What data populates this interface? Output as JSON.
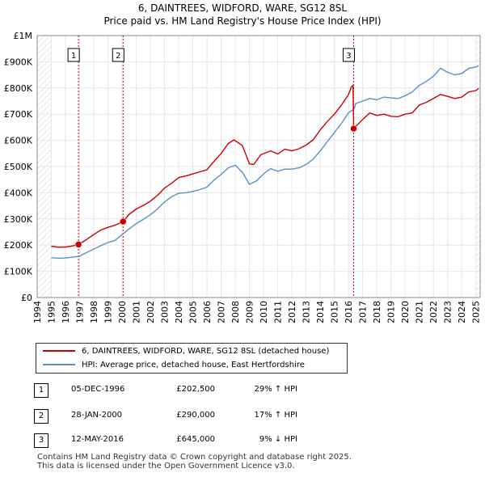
{
  "chart_data": {
    "type": "line",
    "title": "6, DAINTREES, WIDFORD, WARE, SG12 8SL",
    "subtitle": "Price paid vs. HM Land Registry's House Price Index (HPI)",
    "xlim": [
      1994,
      2025.3
    ],
    "ylim": [
      0,
      1000000
    ],
    "y_ticks": [
      0,
      100000,
      200000,
      300000,
      400000,
      500000,
      600000,
      700000,
      800000,
      900000,
      1000000
    ],
    "y_tick_labels": [
      "£0",
      "£100K",
      "£200K",
      "£300K",
      "£400K",
      "£500K",
      "£600K",
      "£700K",
      "£800K",
      "£900K",
      "£1M"
    ],
    "x_ticks": [
      1994,
      1995,
      1996,
      1997,
      1998,
      1999,
      2000,
      2001,
      2002,
      2003,
      2004,
      2005,
      2006,
      2007,
      2008,
      2009,
      2010,
      2011,
      2012,
      2013,
      2014,
      2015,
      2016,
      2017,
      2018,
      2019,
      2020,
      2021,
      2022,
      2023,
      2024,
      2025
    ],
    "x_tick_labels": [
      "1994",
      "1995",
      "1996",
      "1997",
      "1998",
      "1999",
      "2000",
      "2001",
      "2002",
      "2003",
      "2004",
      "2005",
      "2006",
      "2007",
      "2008",
      "2009",
      "2010",
      "2011",
      "2012",
      "2013",
      "2014",
      "2015",
      "2016",
      "2017",
      "2018",
      "2019",
      "2020",
      "2021",
      "2022",
      "2023",
      "2024",
      "2025"
    ],
    "grid": true,
    "series": [
      {
        "name": "6, DAINTREES, WIDFORD, WARE, SG12 8SL (detached house)",
        "color": "#cc0000",
        "x": [
          1995.0,
          1995.5,
          1996.0,
          1996.5,
          1996.92,
          1997.5,
          1998.0,
          1998.5,
          1999.0,
          1999.5,
          2000.07,
          2000.5,
          2001.0,
          2001.5,
          2002.0,
          2002.5,
          2003.0,
          2003.5,
          2004.0,
          2004.5,
          2005.0,
          2005.5,
          2006.0,
          2006.5,
          2007.0,
          2007.5,
          2007.9,
          2008.5,
          2009.0,
          2009.3,
          2009.8,
          2010.5,
          2011.0,
          2011.5,
          2012.0,
          2012.5,
          2013.0,
          2013.5,
          2014.0,
          2014.5,
          2015.0,
          2015.5,
          2016.0,
          2016.2,
          2016.32,
          2016.36,
          2016.5,
          2017.0,
          2017.5,
          2018.0,
          2018.5,
          2019.0,
          2019.5,
          2020.0,
          2020.5,
          2021.0,
          2021.5,
          2022.0,
          2022.5,
          2023.0,
          2023.5,
          2024.0,
          2024.5,
          2025.0,
          2025.2
        ],
        "y": [
          196000,
          192000,
          193000,
          197000,
          202500,
          222000,
          240000,
          258000,
          268000,
          276000,
          290000,
          318000,
          338000,
          352000,
          368000,
          390000,
          418000,
          436000,
          458000,
          464000,
          472000,
          480000,
          488000,
          520000,
          550000,
          588000,
          602000,
          580000,
          510000,
          508000,
          545000,
          560000,
          548000,
          566000,
          560000,
          568000,
          582000,
          602000,
          640000,
          672000,
          700000,
          735000,
          775000,
          805000,
          810000,
          645000,
          652000,
          680000,
          705000,
          695000,
          700000,
          692000,
          690000,
          700000,
          705000,
          735000,
          745000,
          760000,
          775000,
          768000,
          760000,
          765000,
          785000,
          790000,
          798000
        ]
      },
      {
        "name": "HPI: Average price, detached house, East Hertfordshire",
        "color": "#5b8fc9",
        "x": [
          1995.0,
          1995.5,
          1996.0,
          1996.5,
          1997.0,
          1997.5,
          1998.0,
          1998.5,
          1999.0,
          1999.5,
          2000.0,
          2000.5,
          2001.0,
          2001.5,
          2002.0,
          2002.5,
          2003.0,
          2003.5,
          2004.0,
          2004.5,
          2005.0,
          2005.5,
          2006.0,
          2006.5,
          2007.0,
          2007.5,
          2008.0,
          2008.5,
          2009.0,
          2009.5,
          2010.0,
          2010.5,
          2011.0,
          2011.5,
          2012.0,
          2012.5,
          2013.0,
          2013.5,
          2014.0,
          2014.5,
          2015.0,
          2015.5,
          2016.0,
          2016.4,
          2016.5,
          2017.0,
          2017.5,
          2018.0,
          2018.5,
          2019.0,
          2019.5,
          2020.0,
          2020.5,
          2021.0,
          2021.5,
          2022.0,
          2022.5,
          2023.0,
          2023.5,
          2024.0,
          2024.5,
          2025.0,
          2025.2
        ],
        "y": [
          152000,
          150000,
          151000,
          154000,
          158000,
          172000,
          185000,
          198000,
          210000,
          218000,
          240000,
          262000,
          282000,
          298000,
          316000,
          338000,
          365000,
          385000,
          398000,
          400000,
          405000,
          412000,
          422000,
          448000,
          470000,
          495000,
          505000,
          478000,
          432000,
          445000,
          472000,
          492000,
          482000,
          490000,
          490000,
          495000,
          508000,
          528000,
          560000,
          595000,
          630000,
          665000,
          705000,
          720000,
          740000,
          750000,
          760000,
          755000,
          765000,
          762000,
          760000,
          770000,
          785000,
          810000,
          825000,
          845000,
          875000,
          860000,
          850000,
          855000,
          875000,
          880000,
          885000
        ]
      }
    ],
    "sales": [
      {
        "label": "1",
        "x": 1996.92,
        "y": 202500,
        "date": "05-DEC-1996",
        "price": "£202,500",
        "hpi": "29% ↑ HPI"
      },
      {
        "label": "2",
        "x": 2000.07,
        "y": 290000,
        "date": "28-JAN-2000",
        "price": "£290,000",
        "hpi": "17% ↑ HPI"
      },
      {
        "label": "3",
        "x": 2016.36,
        "y": 645000,
        "date": "12-MAY-2016",
        "price": "£645,000",
        "hpi": "9% ↓ HPI"
      }
    ]
  },
  "footer": {
    "line1": "Contains HM Land Registry data © Crown copyright and database right 2025.",
    "line2": "This data is licensed under the Open Government Licence v3.0."
  },
  "colors": {
    "property": "#cc0000",
    "hpi": "#5b8fc9",
    "hatch": "#d7d7d7",
    "sale_line": "#cc0000"
  }
}
